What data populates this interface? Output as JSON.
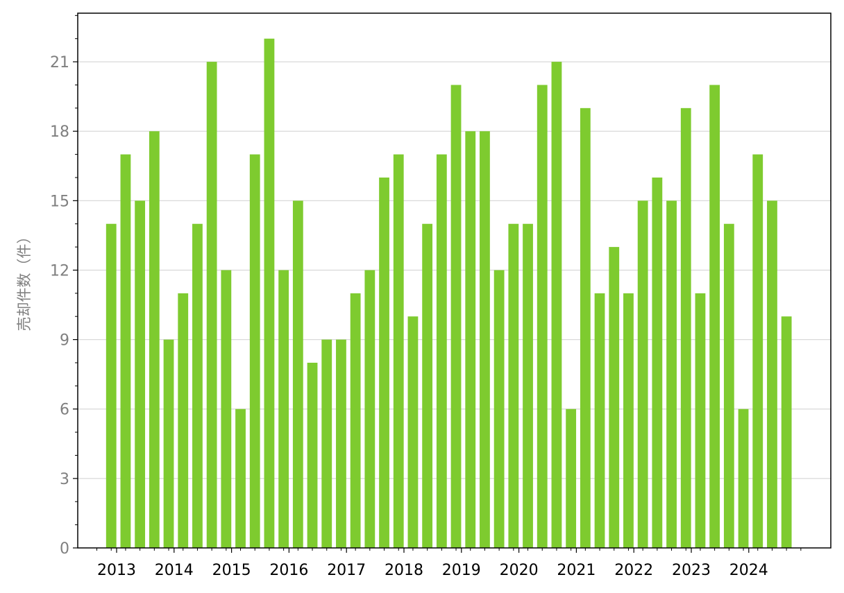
{
  "chart_data": {
    "type": "bar",
    "title": "",
    "xlabel": "",
    "ylabel": "売却件数（件）",
    "ylim": [
      0,
      23.1
    ],
    "yticks": [
      0,
      3,
      6,
      9,
      12,
      15,
      18,
      21
    ],
    "grid": "horizontal",
    "bar_color": "#7ecb2f",
    "years": [
      "2013",
      "2014",
      "2015",
      "2016",
      "2017",
      "2018",
      "2019",
      "2020",
      "2021",
      "2022",
      "2023",
      "2024"
    ],
    "quarters_per_year": 4,
    "values": [
      14,
      17,
      15,
      18,
      9,
      11,
      14,
      21,
      12,
      6,
      17,
      22,
      12,
      15,
      8,
      9,
      9,
      11,
      12,
      16,
      17,
      10,
      14,
      17,
      20,
      18,
      18,
      12,
      14,
      14,
      20,
      21,
      6,
      19,
      11,
      13,
      11,
      15,
      16,
      15,
      19,
      11,
      20,
      14,
      6,
      17,
      15,
      10
    ]
  }
}
